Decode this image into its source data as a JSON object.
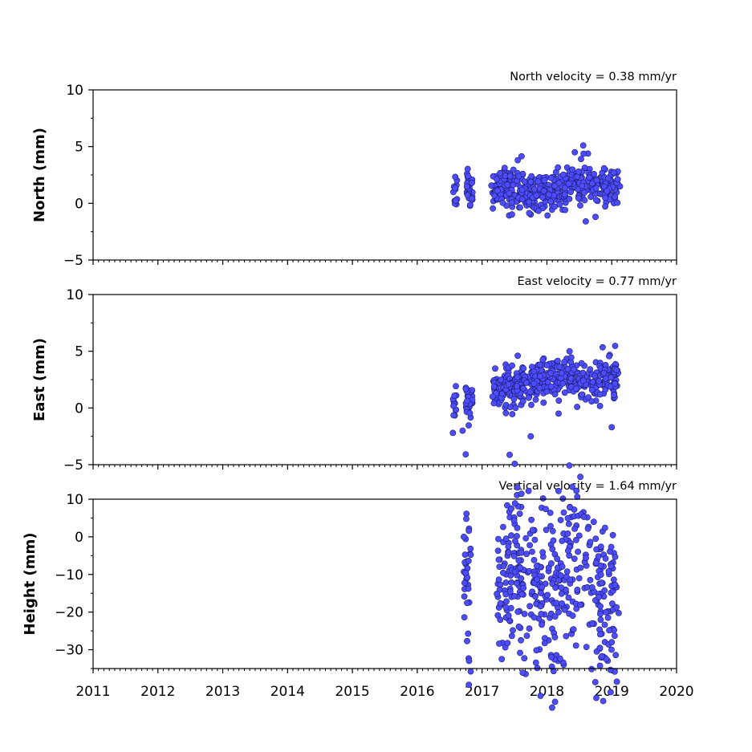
{
  "chart_data": [
    {
      "type": "scatter",
      "title": "North velocity = 0.38 mm/yr",
      "ylabel": "North (mm)",
      "xlim": [
        2011,
        2020
      ],
      "ylim": [
        -5,
        10
      ],
      "yticks": [
        -5,
        0,
        5,
        10
      ],
      "yticklabels": [
        "−5",
        "0",
        "5",
        "10"
      ],
      "marker_color": "#4d4dff",
      "series": [
        {
          "clusters": [
            {
              "x": [
                2016.55,
                2016.62
              ],
              "y": [
                1.2,
                1.3
              ],
              "n": 12,
              "sx": 0.02
            },
            {
              "x": [
                2016.75,
                2016.85
              ],
              "y": [
                1.6,
                1.2
              ],
              "n": 35,
              "sx": 0.025
            },
            {
              "x": [
                2017.15,
                2017.45
              ],
              "y": [
                1.5,
                1.2
              ],
              "n": 70,
              "sx": 0.08
            },
            {
              "x": [
                2017.45,
                2017.8
              ],
              "y": [
                1.0,
                0.8
              ],
              "n": 90,
              "sx": 0.09
            },
            {
              "x": [
                2017.8,
                2018.2
              ],
              "y": [
                1.0,
                1.3
              ],
              "n": 95,
              "sx": 0.1
            },
            {
              "x": [
                2018.2,
                2018.65
              ],
              "y": [
                1.4,
                1.9
              ],
              "n": 95,
              "sx": 0.11
            },
            {
              "x": [
                2018.7,
                2019.08
              ],
              "y": [
                1.3,
                1.6
              ],
              "n": 95,
              "sx": 0.09
            }
          ],
          "outliers": [
            {
              "x": 2018.56,
              "y": 5.1
            },
            {
              "x": 2018.43,
              "y": 4.5
            },
            {
              "x": 2018.6,
              "y": -1.6
            },
            {
              "x": 2018.75,
              "y": -1.2
            },
            {
              "x": 2017.55,
              "y": 3.8
            }
          ]
        }
      ]
    },
    {
      "type": "scatter",
      "title": "East velocity = 0.77 mm/yr",
      "ylabel": "East (mm)",
      "xlim": [
        2011,
        2020
      ],
      "ylim": [
        -5,
        10
      ],
      "yticks": [
        -5,
        0,
        5,
        10
      ],
      "yticklabels": [
        "−5",
        "0",
        "5",
        "10"
      ],
      "marker_color": "#4d4dff",
      "series": [
        {
          "clusters": [
            {
              "x": [
                2016.55,
                2016.62
              ],
              "y": [
                0.4,
                0.7
              ],
              "n": 12,
              "sx": 0.02
            },
            {
              "x": [
                2016.75,
                2016.85
              ],
              "y": [
                0.8,
                1.0
              ],
              "n": 35,
              "sx": 0.025
            },
            {
              "x": [
                2017.15,
                2017.45
              ],
              "y": [
                1.5,
                2.0
              ],
              "n": 70,
              "sx": 0.08
            },
            {
              "x": [
                2017.45,
                2017.8
              ],
              "y": [
                1.7,
                2.2
              ],
              "n": 90,
              "sx": 0.09
            },
            {
              "x": [
                2017.8,
                2018.2
              ],
              "y": [
                2.3,
                2.7
              ],
              "n": 95,
              "sx": 0.1
            },
            {
              "x": [
                2018.2,
                2018.65
              ],
              "y": [
                2.7,
                2.4
              ],
              "n": 95,
              "sx": 0.11
            },
            {
              "x": [
                2018.7,
                2019.08
              ],
              "y": [
                2.2,
                2.8
              ],
              "n": 95,
              "sx": 0.09
            }
          ],
          "outliers": [
            {
              "x": 2017.75,
              "y": -2.5
            },
            {
              "x": 2019.0,
              "y": -1.7
            },
            {
              "x": 2016.55,
              "y": -2.2
            },
            {
              "x": 2016.7,
              "y": -2.0
            },
            {
              "x": 2018.35,
              "y": 5.0
            },
            {
              "x": 2017.55,
              "y": 4.6
            }
          ]
        }
      ]
    },
    {
      "type": "scatter",
      "title": "Vertical velocity = 1.64 mm/yr",
      "ylabel": "Height (mm)",
      "xlim": [
        2011,
        2020
      ],
      "xticks": [
        2011,
        2012,
        2013,
        2014,
        2015,
        2016,
        2017,
        2018,
        2019,
        2020
      ],
      "xticklabels": [
        "2011",
        "2012",
        "2013",
        "2014",
        "2015",
        "2016",
        "2017",
        "2018",
        "2019",
        "2020"
      ],
      "ylim": [
        -35,
        10
      ],
      "yticks": [
        -30,
        -20,
        -10,
        0,
        10
      ],
      "yticklabels": [
        "−30",
        "−20",
        "−10",
        "0",
        "10"
      ],
      "marker_color": "#4d4dff",
      "series": [
        {
          "clusters": [
            {
              "x": [
                2016.72,
                2016.82
              ],
              "y": [
                -8,
                -12
              ],
              "n": 35,
              "sx": 0.02
            },
            {
              "x": [
                2017.25,
                2017.45
              ],
              "y": [
                -15,
                -12
              ],
              "n": 55,
              "sx": 0.07
            },
            {
              "x": [
                2017.45,
                2017.8
              ],
              "y": [
                -11,
                -9
              ],
              "n": 80,
              "sx": 0.09
            },
            {
              "x": [
                2017.8,
                2018.15
              ],
              "y": [
                -14,
                -20
              ],
              "n": 90,
              "sx": 0.1
            },
            {
              "x": [
                2018.15,
                2018.7
              ],
              "y": [
                -12,
                -7
              ],
              "n": 100,
              "sx": 0.13
            },
            {
              "x": [
                2018.75,
                2019.08
              ],
              "y": [
                -12,
                -17
              ],
              "n": 95,
              "sx": 0.09
            }
          ],
          "outliers": [
            {
              "x": 2017.45,
              "y": 7.5
            },
            {
              "x": 2018.53,
              "y": 6.0
            },
            {
              "x": 2018.57,
              "y": 5.3
            },
            {
              "x": 2017.76,
              "y": 4.5
            },
            {
              "x": 2018.07,
              "y": -32
            },
            {
              "x": 2016.72,
              "y": 0
            },
            {
              "x": 2017.6,
              "y": -27.5
            },
            {
              "x": 2019.0,
              "y": -28
            }
          ]
        }
      ]
    }
  ]
}
